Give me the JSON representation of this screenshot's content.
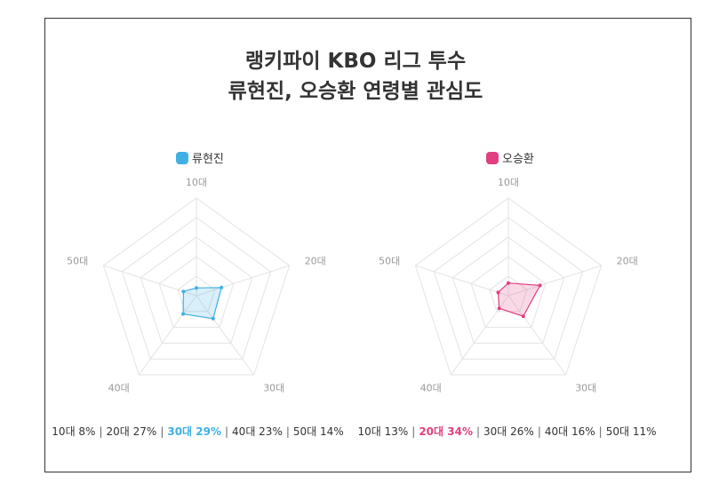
{
  "title_line1": "랭키파이 KBO 리그 투수",
  "title_line2": "류현진, 오승환 연령별 관심도",
  "chart_data": [
    {
      "type": "radar",
      "series_name": "류현진",
      "color": "#41afe4",
      "categories": [
        "10대",
        "20대",
        "30대",
        "40대",
        "50대"
      ],
      "values": [
        8,
        27,
        29,
        23,
        14
      ],
      "max": 100,
      "rings": 5,
      "highlight_index": 2,
      "summary": [
        "10대 8%",
        "20대 27%",
        "30대 29%",
        "40대 23%",
        "50대 14%"
      ]
    },
    {
      "type": "radar",
      "series_name": "오승환",
      "color": "#e23f81",
      "categories": [
        "10대",
        "20대",
        "30대",
        "40대",
        "50대"
      ],
      "values": [
        13,
        34,
        26,
        16,
        11
      ],
      "max": 100,
      "rings": 5,
      "highlight_index": 1,
      "summary": [
        "10대 13%",
        "20대 34%",
        "30대 26%",
        "40대 16%",
        "50대 11%"
      ]
    }
  ]
}
